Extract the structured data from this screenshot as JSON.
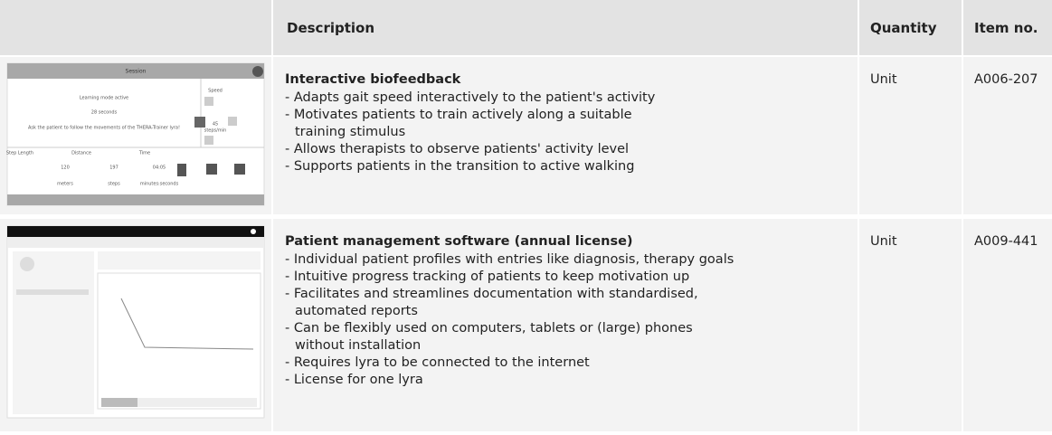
{
  "header": {
    "columns": [
      "Description",
      "Quantity",
      "Item no."
    ]
  },
  "rows": [
    {
      "thumbnail": {
        "title": "Session",
        "texts": [
          "Learning mode active",
          "28 seconds",
          "Ask the patient to follow the movements of the THERA-Trainer lyra!",
          "Speed",
          "45",
          "steps/min",
          "Step Length",
          "Distance",
          "Time",
          "120",
          "197",
          "04:05",
          "meters",
          "steps",
          "minutes:seconds"
        ]
      },
      "title": "Interactive biofeedback",
      "bullets": [
        [
          "- Adapts gait speed interactively to the patient's activity"
        ],
        [
          "- Motivates patients to train actively along a suitable",
          "training stimulus"
        ],
        [
          "- Allows therapists to observe patients' activity level"
        ],
        [
          "- Supports patients in the transition to active walking"
        ]
      ],
      "quantity": "Unit",
      "item_no": "A006-207"
    },
    {
      "title": "Patient management software (annual license)",
      "bullets": [
        [
          "- Individual patient profiles with entries like diagnosis, therapy goals"
        ],
        [
          "- Intuitive progress tracking of patients to keep motivation up"
        ],
        [
          "- Facilitates and streamlines documentation with standardised,",
          "automated reports"
        ],
        [
          "- Can be flexibly used on computers, tablets or (large) phones",
          "without installation"
        ],
        [
          "- Requires lyra to be connected to the internet"
        ],
        [
          "- License for one lyra"
        ]
      ],
      "quantity": "Unit",
      "item_no": "A009-441"
    }
  ]
}
